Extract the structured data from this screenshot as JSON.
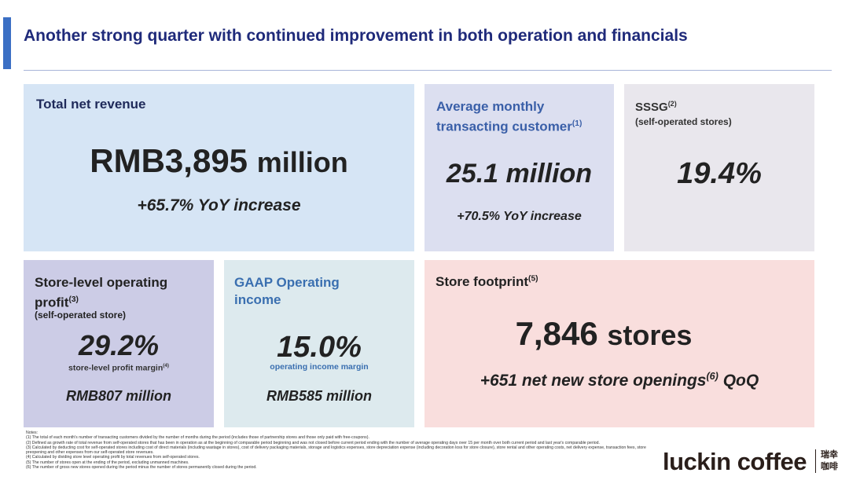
{
  "title": "Another strong quarter with continued improvement in both operation and financials",
  "revenue": {
    "label": "Total net revenue",
    "value": "RMB3,895",
    "unit": "million",
    "change": "+65.7% YoY increase"
  },
  "customers": {
    "label_line1": "Average monthly",
    "label_line2": "transacting customer",
    "note": "(1)",
    "value": "25.1 million",
    "change": "+70.5% YoY increase"
  },
  "sssg": {
    "label": "SSSG",
    "note": "(2)",
    "sub": "(self-operated stores)",
    "value": "19.4%"
  },
  "store_profit": {
    "label_line1": "Store-level operating",
    "label_line2": "profit",
    "note": "(3)",
    "sub": "(self-operated store)",
    "value": "29.2%",
    "margin_label": "store-level profit margin",
    "margin_note": "(4)",
    "amount": "RMB807 million"
  },
  "gaap": {
    "label_line1": "GAAP Operating",
    "label_line2": "income",
    "value": "15.0%",
    "margin_label": "operating income margin",
    "amount": "RMB585 million"
  },
  "footprint": {
    "label": "Store footprint",
    "note": "(5)",
    "value": "7,846",
    "unit": "stores",
    "change_pre": "+651 net new store openings",
    "change_note": "(6)",
    "change_post": " QoQ"
  },
  "notes": [
    "Notes:",
    "(1) The total of each month's number of transacting customers divided by the number of months during the period (includes those of partnership stores and those only paid with free-coupons).",
    "(2) Defined as growth rate of total revenue from self-operated stores that has been in operation as at the beginning of comparable period beginning and was not closed before current period ending with the number of average operating days over 15 per month over both current period and last year's comparable period.",
    "(3) Calculated by deducting cost for self-operated stores including cost of direct materials (including wastage in stores), cost of delivery packaging materials, storage and logistics expenses, store depreciation expense (including decoration loss for store closure), store rental and other operating costs, net delivery expense, transaction fees, store preopening and other expenses from our self-operated store revenues.",
    "(4) Calculated by dividing store level operating profit by total revenues from self-operated stores.",
    "(5) The number of stores open at the ending of the period, excluding unmanned machines.",
    "(6) The number of gross new stores opened during the period minus the number of stores permanently closed during the period."
  ],
  "logo": {
    "text": "luckin coffee",
    "cn_line1": "瑞幸",
    "cn_line2": "咖啡"
  }
}
